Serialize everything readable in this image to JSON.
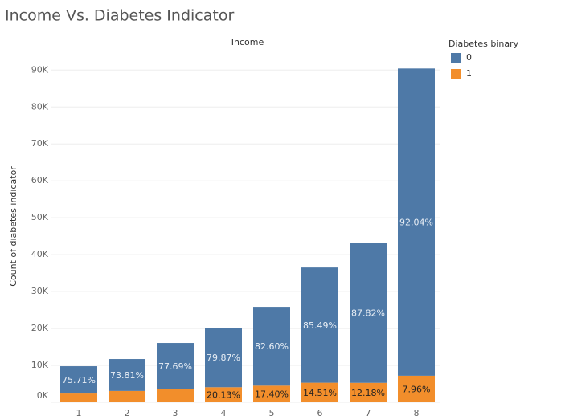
{
  "chart_data": {
    "type": "stacked_bar",
    "title": "Income Vs. Diabetes Indicator",
    "x_header": "Income",
    "y_label": "Count of diabetes indicator",
    "legend_title": "Diabetes binary",
    "legend_position": "right",
    "categories": [
      "1",
      "2",
      "3",
      "4",
      "5",
      "6",
      "7",
      "8"
    ],
    "series": [
      {
        "name": "1",
        "color": "#f28e2b",
        "values": [
          2380,
          3070,
          3590,
          4070,
          4500,
          5300,
          5270,
          7200
        ],
        "data_labels": [
          null,
          null,
          null,
          "20.13%",
          "17.40%",
          "14.51%",
          "12.18%",
          "7.96%"
        ]
      },
      {
        "name": "0",
        "color": "#4e79a7",
        "values": [
          7400,
          8670,
          12500,
          16150,
          21370,
          31220,
          37990,
          83230
        ],
        "data_labels": [
          "75.71%",
          "73.81%",
          "77.69%",
          "79.87%",
          "82.60%",
          "85.49%",
          "87.82%",
          "92.04%"
        ]
      }
    ],
    "legend_order": [
      1,
      0
    ],
    "ylim": [
      0,
      90500
    ],
    "yticks": [
      {
        "value": 0,
        "label": "0K"
      },
      {
        "value": 10000,
        "label": "10K"
      },
      {
        "value": 20000,
        "label": "20K"
      },
      {
        "value": 30000,
        "label": "30K"
      },
      {
        "value": 40000,
        "label": "40K"
      },
      {
        "value": 50000,
        "label": "50K"
      },
      {
        "value": 60000,
        "label": "60K"
      },
      {
        "value": 70000,
        "label": "70K"
      },
      {
        "value": 80000,
        "label": "80K"
      },
      {
        "value": 90000,
        "label": "90K"
      }
    ],
    "grid": true
  }
}
